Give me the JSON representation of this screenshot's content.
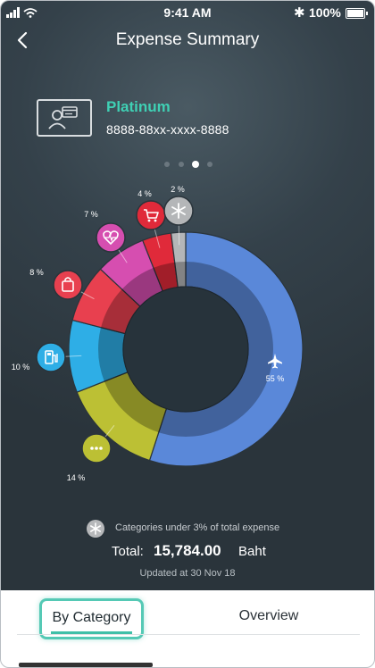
{
  "status_bar": {
    "time": "9:41 AM",
    "battery": "100%"
  },
  "header": {
    "title": "Expense Summary"
  },
  "card": {
    "name": "Platinum",
    "number": "8888-88xx-xxxx-8888"
  },
  "pager": {
    "count": 4,
    "active": 2
  },
  "chart_data": {
    "type": "pie",
    "categories": [
      "Travel",
      "Other",
      "Fuel",
      "Shopping",
      "Health",
      "Groceries",
      "Categories under 3%"
    ],
    "values": [
      55,
      14,
      10,
      8,
      7,
      4,
      2
    ],
    "labels": [
      "55 %",
      "14 %",
      "10 %",
      "8 %",
      "7 %",
      "4 %",
      "2 %"
    ],
    "colors": [
      "#5a88d9",
      "#bcc034",
      "#2eaee6",
      "#e8404f",
      "#d64eb0",
      "#e02a3a",
      "#b4b6b8"
    ],
    "icons": [
      "airplane-icon",
      "more-icon",
      "fuel-icon",
      "shopping-bag-icon",
      "heart-icon",
      "cart-icon",
      "asterisk-icon"
    ]
  },
  "legend": {
    "text": "Categories under 3% of total expense"
  },
  "total": {
    "label": "Total:",
    "value": "15,784.00",
    "unit": "Baht"
  },
  "updated": "Updated at 30 Nov 18",
  "tabs": [
    {
      "label": "By Category",
      "active": true
    },
    {
      "label": "Overview",
      "active": false
    }
  ]
}
